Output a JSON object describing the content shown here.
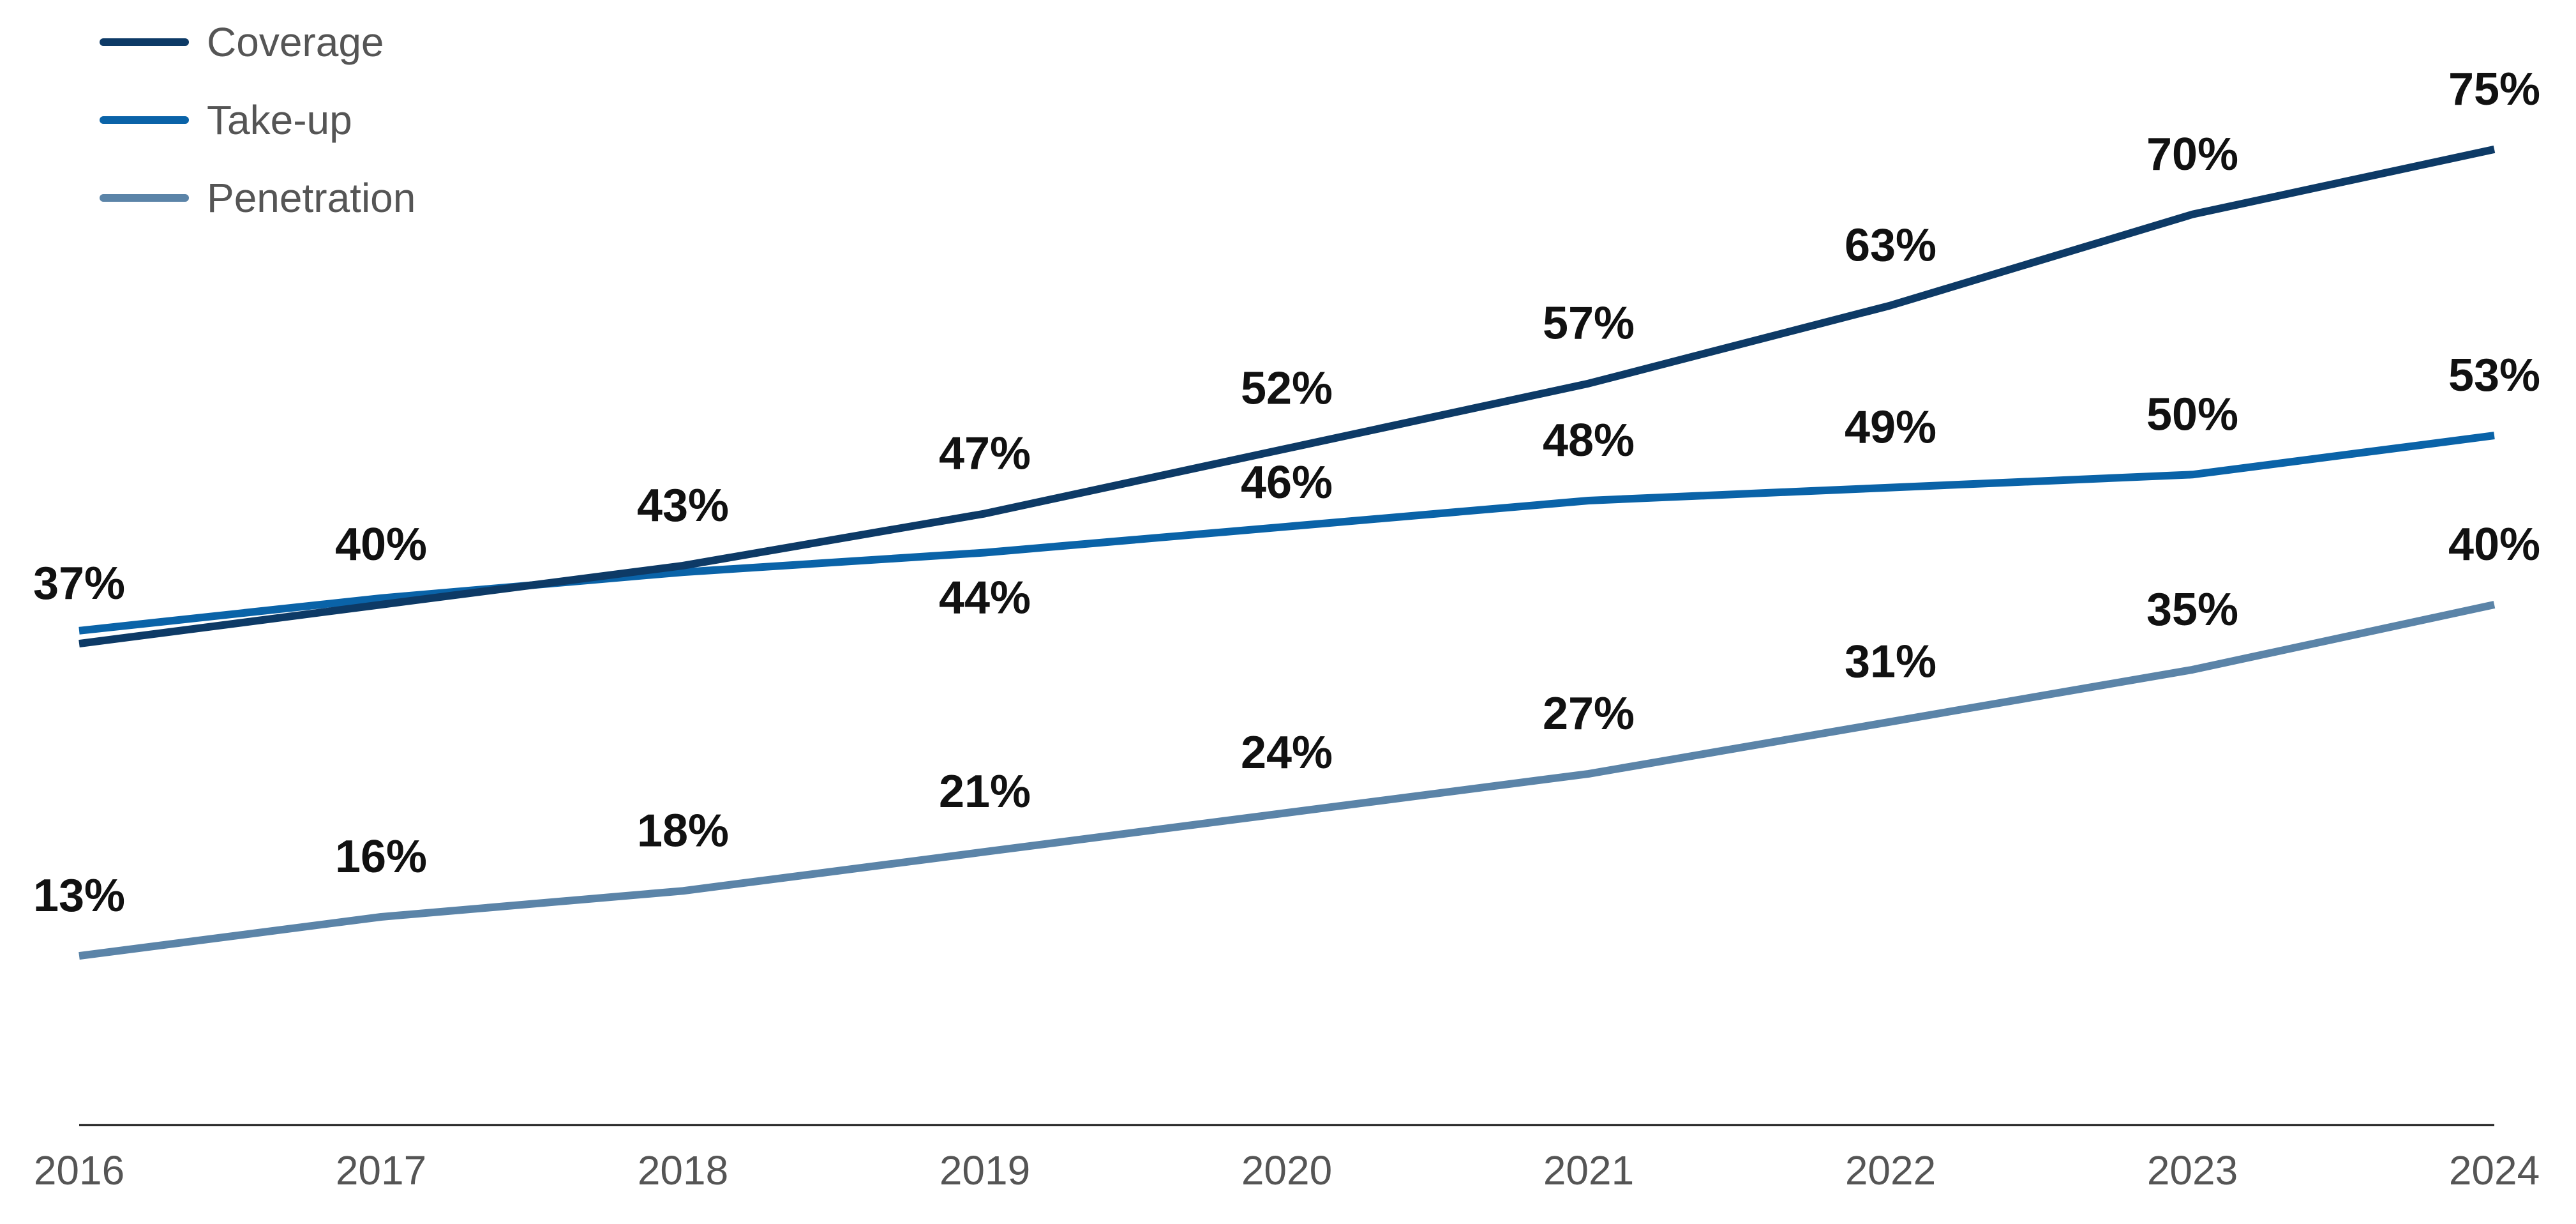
{
  "chart_data": {
    "type": "line",
    "title": "",
    "xlabel": "",
    "ylabel": "",
    "x": [
      "2016",
      "2017",
      "2018",
      "2019",
      "2020",
      "2021",
      "2022",
      "2023",
      "2024"
    ],
    "ylim": [
      0,
      80
    ],
    "grid": false,
    "legend_position": "top-left",
    "series": [
      {
        "name": "Coverage",
        "color": "#0d3a66",
        "values": [
          37,
          40,
          43,
          47,
          52,
          57,
          63,
          70,
          75
        ],
        "labels": [
          "37%",
          "40%",
          "43%",
          "47%",
          "52%",
          "57%",
          "63%",
          "70%",
          "75%"
        ],
        "label_placement": "above"
      },
      {
        "name": "Take-up",
        "color": "#0a63a8",
        "values": [
          38,
          40.5,
          42.5,
          44,
          46,
          48,
          49,
          50,
          53
        ],
        "labels": [
          "",
          "",
          "",
          "44%",
          "46%",
          "48%",
          "49%",
          "50%",
          "53%"
        ],
        "label_placement": "mixed"
      },
      {
        "name": "Penetration",
        "color": "#5b84a8",
        "values": [
          13,
          16,
          18,
          21,
          24,
          27,
          31,
          35,
          40
        ],
        "labels": [
          "13%",
          "16%",
          "18%",
          "21%",
          "24%",
          "27%",
          "31%",
          "35%",
          "40%"
        ],
        "label_placement": "above"
      }
    ]
  }
}
